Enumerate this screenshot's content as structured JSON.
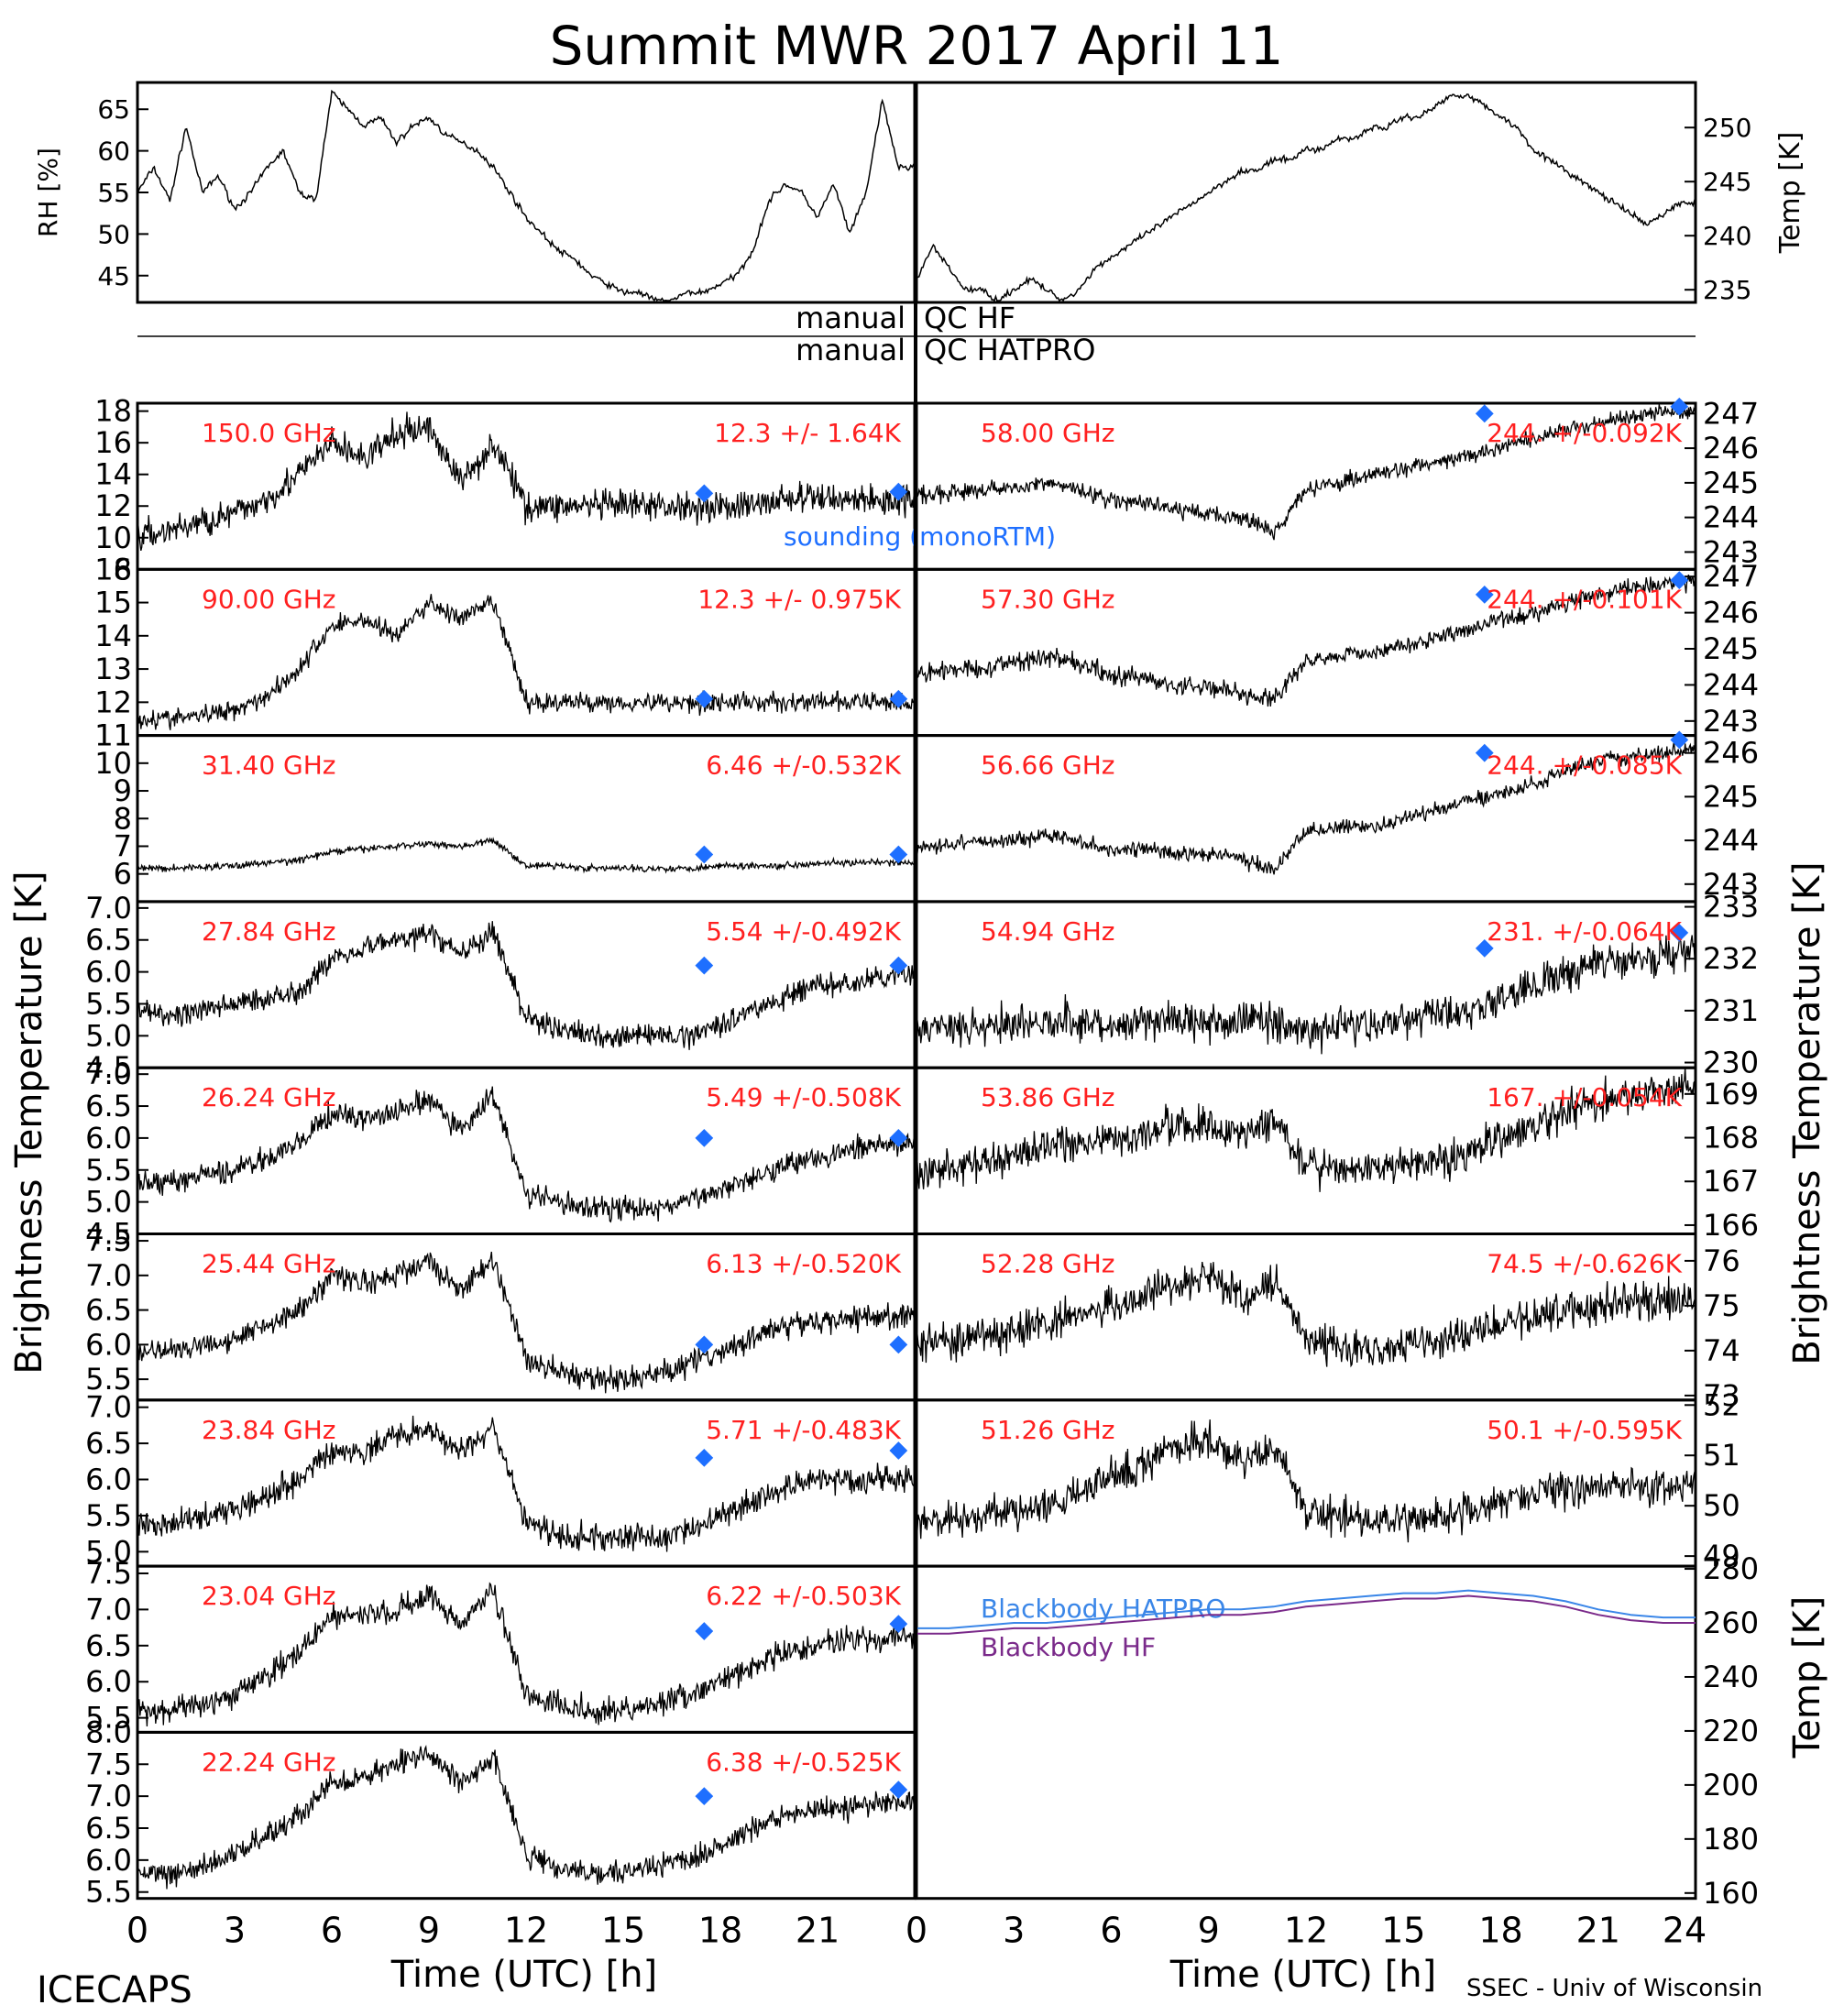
{
  "page": {
    "title": "Summit MWR 2017 April 11"
  },
  "footer": {
    "left": "ICECAPS",
    "right": "SSEC - Univ of Wisconsin"
  },
  "colors": {
    "trace": "#000000",
    "label": "#ff2020",
    "sounding": "#1e6fff",
    "hatpro": "#3a86e8",
    "hf": "#7a2a8a"
  },
  "qc": {
    "left1": "manual",
    "right1": "QC HF",
    "left2": "manual",
    "right2": "QC HATPRO"
  },
  "axes": {
    "x_ticks": [
      "0",
      "3",
      "6",
      "9",
      "12",
      "15",
      "18",
      "21",
      "24"
    ],
    "x_ticks_left": [
      "0",
      "3",
      "6",
      "9",
      "12",
      "15",
      "18",
      "21"
    ],
    "x_label": "Time (UTC) [h]",
    "y_label": "Brightness Temperature [K]",
    "rh_label": "RH [%]",
    "temp_label": "Temp [K]",
    "bb_label": "Temp [K]"
  },
  "chart_data": {
    "type": "line",
    "meteorology": {
      "rh": {
        "ylim": [
          42,
          68
        ],
        "ticks": [
          "45",
          "50",
          "55",
          "60",
          "65"
        ],
        "x": [
          0,
          0.5,
          1,
          1.5,
          2,
          2.5,
          3,
          3.5,
          4,
          4.5,
          5,
          5.5,
          6,
          6.5,
          7,
          7.5,
          8,
          8.5,
          9,
          9.5,
          10,
          10.5,
          11,
          11.5,
          12,
          12.5,
          13,
          13.5,
          14,
          14.5,
          15,
          15.5,
          16,
          16.5,
          17,
          17.5,
          18,
          18.5,
          19,
          19.5,
          20,
          20.5,
          21,
          21.5,
          22,
          22.5,
          23,
          23.5,
          24
        ],
        "y": [
          55,
          58,
          54,
          63,
          55,
          57,
          53,
          55,
          58,
          60,
          55,
          54,
          67,
          65,
          63,
          64,
          61,
          63,
          64,
          62,
          61,
          60,
          58,
          55,
          52,
          50,
          48,
          47,
          45,
          44,
          43,
          43,
          42,
          42,
          43,
          43,
          44,
          45,
          48,
          54,
          56,
          55,
          52,
          56,
          50,
          55,
          66,
          58,
          58
        ]
      },
      "temp": {
        "ylim": [
          234,
          254
        ],
        "ticks": [
          "235",
          "240",
          "245",
          "250"
        ],
        "x": [
          0,
          0.5,
          1,
          1.5,
          2,
          2.5,
          3,
          3.5,
          4,
          4.5,
          5,
          5.5,
          6,
          6.5,
          7,
          7.5,
          8,
          8.5,
          9,
          9.5,
          10,
          10.5,
          11,
          11.5,
          12,
          12.5,
          13,
          13.5,
          14,
          14.5,
          15,
          15.5,
          16,
          16.5,
          17,
          17.5,
          18,
          18.5,
          19,
          19.5,
          20,
          20.5,
          21,
          21.5,
          22,
          22.5,
          23,
          23.5,
          24
        ],
        "y": [
          236,
          239,
          237,
          235,
          235,
          234,
          235,
          236,
          235,
          234,
          235,
          237,
          238,
          239,
          240,
          241,
          242,
          243,
          244,
          245,
          246,
          246,
          247,
          247,
          248,
          248,
          249,
          249,
          250,
          250,
          251,
          251,
          252,
          253,
          253,
          252,
          251,
          250,
          248,
          247,
          246,
          245,
          244,
          243,
          242,
          241,
          242,
          243,
          243
        ]
      }
    },
    "bt_panels": [
      {
        "side": "left",
        "freq": "150.0 GHz",
        "stat": "12.3 +/-  1.64K",
        "ylim": [
          8,
          18.5
        ],
        "ticks": [
          "8",
          "10",
          "12",
          "14",
          "16",
          "18"
        ],
        "profile": [
          10,
          10.5,
          11,
          11.5,
          12.5,
          14,
          16,
          15,
          16.5,
          17,
          13.5,
          16,
          12,
          12,
          12,
          12,
          12,
          12,
          12,
          12,
          12.5,
          12.5,
          12.5,
          12.3,
          12.5
        ],
        "noise": 0.8,
        "sounding": [
          [
            17.5,
            12.8
          ],
          [
            23.5,
            12.9
          ]
        ]
      },
      {
        "side": "left",
        "freq": "90.00 GHz",
        "stat": "12.3 +/- 0.975K",
        "ylim": [
          11,
          16
        ],
        "ticks": [
          "11",
          "12",
          "13",
          "14",
          "15",
          "16"
        ],
        "profile": [
          11.5,
          11.5,
          11.6,
          11.8,
          12.2,
          13,
          14.3,
          14.5,
          14,
          15,
          14.5,
          15,
          12,
          12,
          12,
          12,
          12,
          12,
          12,
          12,
          12,
          12,
          12,
          12,
          12
        ],
        "noise": 0.25,
        "sounding": [
          [
            17.5,
            12.1
          ],
          [
            23.5,
            12.1
          ]
        ]
      },
      {
        "side": "left",
        "freq": "31.40 GHz",
        "stat": "6.46 +/-0.532K",
        "ylim": [
          5,
          11
        ],
        "ticks": [
          "6",
          "7",
          "8",
          "9",
          "10",
          "11"
        ],
        "profile": [
          6.2,
          6.2,
          6.25,
          6.3,
          6.4,
          6.5,
          6.8,
          6.9,
          7,
          7.1,
          7,
          7.2,
          6.3,
          6.3,
          6.2,
          6.2,
          6.2,
          6.2,
          6.3,
          6.3,
          6.3,
          6.4,
          6.4,
          6.4,
          6.4
        ],
        "noise": 0.1,
        "sounding": [
          [
            17.5,
            6.7
          ],
          [
            23.5,
            6.7
          ]
        ]
      },
      {
        "side": "left",
        "freq": "27.84 GHz",
        "stat": "5.54 +/-0.492K",
        "ylim": [
          4.5,
          7.1
        ],
        "ticks": [
          "4.5",
          "5.0",
          "5.5",
          "6.0",
          "6.5",
          "7.0"
        ],
        "profile": [
          5.4,
          5.3,
          5.4,
          5.5,
          5.6,
          5.7,
          6.2,
          6.4,
          6.5,
          6.6,
          6.3,
          6.6,
          5.3,
          5.1,
          5.0,
          5.0,
          5.0,
          5.0,
          5.2,
          5.4,
          5.6,
          5.8,
          5.8,
          5.9,
          6.0
        ],
        "noise": 0.15,
        "sounding": [
          [
            17.5,
            6.1
          ],
          [
            23.5,
            6.1
          ]
        ]
      },
      {
        "side": "left",
        "freq": "26.24 GHz",
        "stat": "5.49 +/-0.508K",
        "ylim": [
          4.5,
          7.1
        ],
        "ticks": [
          "4.5",
          "5.0",
          "5.5",
          "6.0",
          "6.5",
          "7.0"
        ],
        "profile": [
          5.3,
          5.3,
          5.4,
          5.5,
          5.7,
          5.9,
          6.4,
          6.3,
          6.4,
          6.6,
          6.1,
          6.7,
          5.1,
          5.0,
          4.9,
          4.9,
          4.9,
          5.0,
          5.2,
          5.4,
          5.6,
          5.7,
          5.8,
          5.9,
          5.9
        ],
        "noise": 0.15,
        "sounding": [
          [
            17.5,
            6.0
          ],
          [
            23.5,
            6.0
          ]
        ]
      },
      {
        "side": "left",
        "freq": "25.44 GHz",
        "stat": "6.13 +/-0.520K",
        "ylim": [
          5.2,
          7.6
        ],
        "ticks": [
          "5.5",
          "6.0",
          "6.5",
          "7.0",
          "7.5"
        ],
        "profile": [
          5.9,
          5.9,
          6.0,
          6.1,
          6.3,
          6.5,
          7.0,
          6.9,
          7.0,
          7.2,
          6.8,
          7.2,
          5.8,
          5.6,
          5.5,
          5.5,
          5.6,
          5.7,
          5.9,
          6.1,
          6.3,
          6.3,
          6.4,
          6.4,
          6.4
        ],
        "noise": 0.15,
        "sounding": [
          [
            17.5,
            6.0
          ],
          [
            23.5,
            6.0
          ]
        ]
      },
      {
        "side": "left",
        "freq": "23.84 GHz",
        "stat": "5.71 +/-0.483K",
        "ylim": [
          4.8,
          7.1
        ],
        "ticks": [
          "5.0",
          "5.5",
          "6.0",
          "6.5",
          "7.0"
        ],
        "profile": [
          5.4,
          5.4,
          5.5,
          5.6,
          5.8,
          6.0,
          6.4,
          6.4,
          6.6,
          6.7,
          6.4,
          6.7,
          5.4,
          5.2,
          5.2,
          5.2,
          5.2,
          5.3,
          5.5,
          5.7,
          5.9,
          6.0,
          6.0,
          6.0,
          6.0
        ],
        "noise": 0.15,
        "sounding": [
          [
            17.5,
            6.3
          ],
          [
            23.5,
            6.4
          ]
        ]
      },
      {
        "side": "left",
        "freq": "23.04 GHz",
        "stat": "6.22 +/-0.503K",
        "ylim": [
          5.3,
          7.6
        ],
        "ticks": [
          "5.5",
          "6.0",
          "6.5",
          "7.0",
          "7.5"
        ],
        "profile": [
          5.6,
          5.6,
          5.7,
          5.8,
          6.1,
          6.4,
          6.9,
          6.9,
          7.0,
          7.2,
          6.8,
          7.3,
          5.8,
          5.7,
          5.6,
          5.6,
          5.7,
          5.8,
          6.0,
          6.2,
          6.4,
          6.5,
          6.6,
          6.6,
          6.6
        ],
        "noise": 0.15,
        "sounding": [
          [
            17.5,
            6.7
          ],
          [
            23.5,
            6.8
          ]
        ]
      },
      {
        "side": "left",
        "freq": "22.24 GHz",
        "stat": "6.38 +/-0.525K",
        "ylim": [
          5.4,
          8.0
        ],
        "ticks": [
          "5.5",
          "6.0",
          "6.5",
          "7.0",
          "7.5",
          "8.0"
        ],
        "profile": [
          5.8,
          5.8,
          5.9,
          6.1,
          6.4,
          6.7,
          7.2,
          7.3,
          7.5,
          7.7,
          7.2,
          7.6,
          6.1,
          5.9,
          5.8,
          5.8,
          5.9,
          6.0,
          6.2,
          6.5,
          6.7,
          6.8,
          6.8,
          6.9,
          6.9
        ],
        "noise": 0.15,
        "sounding": [
          [
            17.5,
            7.0
          ],
          [
            23.5,
            7.1
          ]
        ]
      },
      {
        "side": "right",
        "freq": "58.00 GHz",
        "stat": "244. +/-0.092K",
        "ylim": [
          242.5,
          247.3
        ],
        "ticks": [
          "243",
          "244",
          "245",
          "246",
          "247"
        ],
        "profile": [
          244.7,
          244.7,
          244.8,
          244.9,
          245.0,
          244.8,
          244.5,
          244.4,
          244.2,
          244.1,
          244.0,
          243.6,
          244.8,
          245.0,
          245.2,
          245.4,
          245.6,
          245.8,
          246.0,
          246.3,
          246.5,
          246.7,
          246.9,
          247.0,
          247.1
        ],
        "noise": 0.2,
        "sounding": [
          [
            17.5,
            247.0
          ],
          [
            23.5,
            247.2
          ]
        ]
      },
      {
        "side": "right",
        "freq": "57.30 GHz",
        "stat": "244. +/-0.101K",
        "ylim": [
          242.6,
          247.2
        ],
        "ticks": [
          "243",
          "244",
          "245",
          "246",
          "247"
        ],
        "profile": [
          244.3,
          244.4,
          244.5,
          244.6,
          244.8,
          244.6,
          244.3,
          244.2,
          244.0,
          243.9,
          243.8,
          243.6,
          244.7,
          244.8,
          244.9,
          245.1,
          245.3,
          245.5,
          245.8,
          246.0,
          246.3,
          246.5,
          246.7,
          246.8,
          246.9
        ],
        "noise": 0.2,
        "sounding": [
          [
            17.5,
            246.5
          ],
          [
            23.5,
            246.9
          ]
        ]
      },
      {
        "side": "right",
        "freq": "56.66 GHz",
        "stat": "244. +/-0.085K",
        "ylim": [
          242.6,
          246.4
        ],
        "ticks": [
          "243",
          "244",
          "245",
          "246"
        ],
        "profile": [
          243.8,
          243.9,
          244.0,
          244.0,
          244.1,
          244.0,
          243.8,
          243.8,
          243.7,
          243.7,
          243.6,
          243.3,
          244.2,
          244.3,
          244.3,
          244.5,
          244.7,
          244.9,
          245.1,
          245.3,
          245.6,
          245.8,
          245.9,
          246.0,
          246.1
        ],
        "noise": 0.15,
        "sounding": [
          [
            17.5,
            246.0
          ],
          [
            23.5,
            246.3
          ]
        ]
      },
      {
        "side": "right",
        "freq": "54.94 GHz",
        "stat": "231. +/-0.064K",
        "ylim": [
          229.9,
          233.1
        ],
        "ticks": [
          "230",
          "231",
          "232",
          "233"
        ],
        "profile": [
          230.6,
          230.7,
          230.7,
          230.8,
          230.8,
          230.8,
          230.7,
          230.8,
          230.8,
          230.8,
          230.8,
          230.8,
          230.6,
          230.7,
          230.7,
          230.8,
          230.9,
          231.0,
          231.2,
          231.5,
          231.7,
          231.9,
          232.0,
          232.1,
          232.2
        ],
        "noise": 0.3,
        "sounding": [
          [
            17.5,
            232.2
          ],
          [
            23.5,
            232.5
          ]
        ]
      },
      {
        "side": "right",
        "freq": "53.86 GHz",
        "stat": "167. +/-0.054K",
        "ylim": [
          165.8,
          169.6
        ],
        "ticks": [
          "166",
          "167",
          "168",
          "169"
        ],
        "profile": [
          167.2,
          167.3,
          167.4,
          167.6,
          167.8,
          167.9,
          168.0,
          168.1,
          168.3,
          168.3,
          168.1,
          168.3,
          167.4,
          167.3,
          167.3,
          167.4,
          167.5,
          167.7,
          168.0,
          168.3,
          168.6,
          168.8,
          169.0,
          169.1,
          169.2
        ],
        "noise": 0.35,
        "sounding": []
      },
      {
        "side": "right",
        "freq": "52.28 GHz",
        "stat": "74.5 +/-0.626K",
        "ylim": [
          72.9,
          76.6
        ],
        "ticks": [
          "73",
          "74",
          "75",
          "76"
        ],
        "profile": [
          74.2,
          74.2,
          74.3,
          74.4,
          74.6,
          74.8,
          75.0,
          75.2,
          75.5,
          75.7,
          75.2,
          75.6,
          74.3,
          74.1,
          74.0,
          74.1,
          74.2,
          74.4,
          74.6,
          74.8,
          74.9,
          75.0,
          75.1,
          75.1,
          75.1
        ],
        "noise": 0.35,
        "sounding": []
      },
      {
        "side": "right",
        "freq": "51.26 GHz",
        "stat": "50.1 +/-0.595K",
        "ylim": [
          48.8,
          52.1
        ],
        "ticks": [
          "49",
          "50",
          "51",
          "52"
        ],
        "profile": [
          49.7,
          49.7,
          49.8,
          49.9,
          50.0,
          50.2,
          50.6,
          50.8,
          51.2,
          51.3,
          50.8,
          51.2,
          49.9,
          49.8,
          49.7,
          49.7,
          49.8,
          49.9,
          50.1,
          50.2,
          50.3,
          50.3,
          50.4,
          50.4,
          50.4
        ],
        "noise": 0.3,
        "sounding": []
      }
    ],
    "blackbody": {
      "ylim": [
        158,
        281
      ],
      "ticks": [
        "160",
        "180",
        "200",
        "220",
        "240",
        "260",
        "280"
      ],
      "series": [
        {
          "name": "Blackbody HATPRO",
          "x": [
            0,
            1,
            2,
            3,
            4,
            5,
            6,
            7,
            8,
            9,
            10,
            11,
            12,
            13,
            14,
            15,
            16,
            17,
            18,
            19,
            20,
            21,
            22,
            23,
            24
          ],
          "y": [
            258,
            258,
            259,
            260,
            260,
            261,
            262,
            263,
            264,
            265,
            265,
            266,
            268,
            269,
            270,
            271,
            271,
            272,
            271,
            270,
            268,
            265,
            263,
            262,
            262
          ]
        },
        {
          "name": "Blackbody HF",
          "x": [
            0,
            1,
            2,
            3,
            4,
            5,
            6,
            7,
            8,
            9,
            10,
            11,
            12,
            13,
            14,
            15,
            16,
            17,
            18,
            19,
            20,
            21,
            22,
            23,
            24
          ],
          "y": [
            256,
            256,
            257,
            258,
            258,
            259,
            260,
            261,
            262,
            263,
            263,
            264,
            266,
            267,
            268,
            269,
            269,
            270,
            269,
            268,
            266,
            263,
            261,
            260,
            260
          ]
        }
      ]
    }
  }
}
